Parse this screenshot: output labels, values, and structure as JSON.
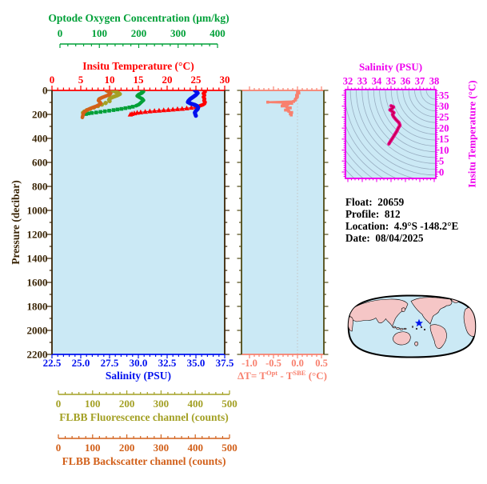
{
  "float_info": {
    "lines": [
      "Float:  20659",
      "Profile:  812",
      "Location:  4.9°S -148.2°E",
      "Date:  08/04/2025"
    ]
  },
  "colors": {
    "oxygen_green": "#00a038",
    "temperature_red": "#ff0000",
    "salinity_blue": "#0010ee",
    "pressure_brown": "#3a2506",
    "fluorescence_olive": "#a3a024",
    "backscatter_orange": "#d2601a",
    "delta_salmon": "#f8806e",
    "delta_frame_olive": "#4f4a14",
    "ts_magenta": "#ee00ee",
    "ts_curve": "#e6008a",
    "plot_background": "#cbe9f5",
    "map_land": "#f5c6c6",
    "map_ocean": "#cbe9f5",
    "star_blue": "#0016ee",
    "contour_gray": "#8fa3b8"
  },
  "chart_data": [
    {
      "type": "line",
      "title": "Main pressure profile plot",
      "ylabel": "Pressure (decibar)",
      "ylim": [
        0,
        2200
      ],
      "yticks": [
        0,
        200,
        400,
        600,
        800,
        1000,
        1200,
        1400,
        1600,
        1800,
        2000,
        2200
      ],
      "y_minor_step": 100,
      "grid": false,
      "axes": [
        {
          "id": "oxygen",
          "label": "Optode Oxygen Concentration (μm/kg)",
          "color": "#00a038",
          "range": [
            0,
            400
          ],
          "ticks": [
            0,
            100,
            200,
            300,
            400
          ],
          "minor_step": 20,
          "position": "top-outer"
        },
        {
          "id": "temperature",
          "label": "Insitu Temperature (°C)",
          "color": "#ff0000",
          "range": [
            0,
            30
          ],
          "ticks": [
            0,
            5,
            10,
            15,
            20,
            25,
            30
          ],
          "minor_step": 1,
          "position": "top"
        },
        {
          "id": "salinity",
          "label": "Salinity (PSU)",
          "color": "#0010ee",
          "range": [
            22.5,
            37.5
          ],
          "ticks": [
            22.5,
            25,
            27.5,
            30,
            32.5,
            35,
            37.5
          ],
          "tick_labels": [
            "22.5",
            "25.0",
            "27.5",
            "30.0",
            "32.5",
            "35.0",
            "37.5"
          ],
          "minor_step": 0.5,
          "position": "bottom"
        },
        {
          "id": "fluorescence",
          "label": "FLBB Fluorescence channel (counts)",
          "color": "#a3a024",
          "range": [
            0,
            500
          ],
          "ticks": [
            0,
            100,
            200,
            300,
            400,
            500
          ],
          "minor_step": 20,
          "position": "bottom-outer-1"
        },
        {
          "id": "backscatter",
          "label": "FLBB Backscatter channel (counts)",
          "color": "#d2601a",
          "range": [
            0,
            500
          ],
          "ticks": [
            0,
            100,
            200,
            300,
            400,
            500
          ],
          "minor_step": 20,
          "position": "bottom-outer-2"
        }
      ],
      "series": [
        {
          "name": "temperature-profile",
          "axis": "temperature",
          "color": "#ff0000",
          "marker": "triangle",
          "msz": 5.6,
          "lw": 4.5,
          "lw_thin": 1.2,
          "thick_until": 10,
          "points": [
            [
              26.4,
              0
            ],
            [
              26.6,
              12
            ],
            [
              26.3,
              25
            ],
            [
              26.5,
              40
            ],
            [
              26.3,
              55
            ],
            [
              26.5,
              70
            ],
            [
              26.4,
              85
            ],
            [
              26.6,
              98
            ],
            [
              26.5,
              110
            ],
            [
              26.2,
              120
            ],
            [
              25.6,
              130
            ],
            [
              25.0,
              138
            ],
            [
              24.2,
              144
            ],
            [
              23.4,
              149
            ],
            [
              22.6,
              153
            ],
            [
              21.8,
              156
            ],
            [
              21.0,
              159
            ],
            [
              20.2,
              162
            ],
            [
              19.4,
              165
            ],
            [
              18.6,
              168
            ],
            [
              17.8,
              171
            ],
            [
              17.0,
              174
            ],
            [
              16.2,
              178
            ],
            [
              15.4,
              182
            ],
            [
              14.8,
              186
            ],
            [
              14.3,
              191
            ],
            [
              13.9,
              196
            ],
            [
              13.6,
              201
            ]
          ]
        },
        {
          "name": "salinity-profile",
          "axis": "salinity",
          "color": "#0010ee",
          "marker": "none",
          "msz": 0,
          "lw": 5,
          "lw_thin": 1.2,
          "thick_until": 99,
          "points": [
            [
              34.9,
              0
            ],
            [
              35.05,
              10
            ],
            [
              35.15,
              22
            ],
            [
              35.0,
              38
            ],
            [
              34.75,
              55
            ],
            [
              34.5,
              72
            ],
            [
              34.35,
              88
            ],
            [
              34.3,
              98
            ],
            [
              34.55,
              110
            ],
            [
              34.9,
              120
            ],
            [
              35.1,
              130
            ],
            [
              35.2,
              142
            ],
            [
              35.15,
              155
            ],
            [
              35.0,
              170
            ],
            [
              34.9,
              185
            ],
            [
              34.95,
              200
            ],
            [
              35.0,
              212
            ]
          ]
        },
        {
          "name": "oxygen-profile",
          "axis": "oxygen",
          "color": "#00a038",
          "marker": "square",
          "msz": 4.6,
          "lw": 4.5,
          "lw_thin": 1.2,
          "thick_until": 11,
          "points": [
            [
              207,
              0
            ],
            [
              212,
              10
            ],
            [
              208,
              22
            ],
            [
              200,
              34
            ],
            [
              196,
              46
            ],
            [
              202,
              58
            ],
            [
              209,
              70
            ],
            [
              212,
              82
            ],
            [
              208,
              94
            ],
            [
              204,
              106
            ],
            [
              200,
              118
            ],
            [
              193,
              128
            ],
            [
              185,
              136
            ],
            [
              176,
              142
            ],
            [
              166,
              148
            ],
            [
              156,
              154
            ],
            [
              146,
              159
            ],
            [
              136,
              164
            ],
            [
              125,
              169
            ],
            [
              114,
              174
            ],
            [
              103,
              179
            ],
            [
              92,
              184
            ],
            [
              81,
              188
            ],
            [
              72,
              192
            ],
            [
              66,
              197
            ]
          ]
        },
        {
          "name": "fluorescence-profile",
          "axis": "fluorescence",
          "color": "#a3a024",
          "marker": "dot",
          "msz": 5.4,
          "lw": 5,
          "lw_thin": 1.6,
          "thick_until": 8,
          "points": [
            [
              157,
              0
            ],
            [
              166,
              10
            ],
            [
              175,
              20
            ],
            [
              180,
              30
            ],
            [
              172,
              42
            ],
            [
              160,
              54
            ],
            [
              151,
              66
            ],
            [
              148,
              78
            ],
            [
              150,
              90
            ],
            [
              138,
              105
            ],
            [
              127,
              118
            ],
            [
              116,
              130
            ],
            [
              104,
              142
            ],
            [
              93,
              154
            ],
            [
              83,
              165
            ],
            [
              76,
              176
            ],
            [
              72,
              186
            ]
          ]
        },
        {
          "name": "backscatter-profile",
          "axis": "backscatter",
          "color": "#d2601a",
          "marker": "none",
          "msz": 0,
          "lw": 4.5,
          "lw_thin": 1.2,
          "thick_until": 99,
          "points": [
            [
              139,
              0
            ],
            [
              147,
              12
            ],
            [
              153,
              24
            ],
            [
              149,
              36
            ],
            [
              138,
              48
            ],
            [
              127,
              60
            ],
            [
              119,
              72
            ],
            [
              117,
              84
            ],
            [
              121,
              96
            ],
            [
              124,
              108
            ],
            [
              119,
              120
            ],
            [
              111,
              132
            ],
            [
              99,
              144
            ],
            [
              89,
              156
            ],
            [
              81,
              168
            ],
            [
              76,
              180
            ],
            [
              73,
              192
            ],
            [
              72,
              204
            ],
            [
              71,
              216
            ],
            [
              70,
              225
            ]
          ]
        }
      ]
    },
    {
      "type": "line",
      "title": "Optode minus SBE temperature difference panel",
      "xlabel_parts": [
        {
          "t": "ΔT= T"
        },
        {
          "t": "Opt",
          "sup": true
        },
        {
          "t": " - T"
        },
        {
          "t": "SBE",
          "sup": true
        },
        {
          "t": " (°C)"
        }
      ],
      "xlabel_color": "#f8806e",
      "xlim": [
        -1.0,
        0.5
      ],
      "xticks": [
        -1.0,
        -0.5,
        0.0,
        0.5
      ],
      "xtick_labels": [
        "-1.0",
        "-0.5",
        "0.0",
        "0.5"
      ],
      "x_minor_step": 0.1,
      "ylim": [
        0,
        2200
      ],
      "y_minor_step": 100,
      "gridline_x": 0.0,
      "series": [
        {
          "name": "delta-t",
          "color": "#f8806e",
          "marker": "square",
          "msz": 3.6,
          "lw": 2.5,
          "points": [
            [
              0.02,
              2
            ],
            [
              0.0,
              12
            ],
            [
              0.03,
              22
            ],
            [
              0.0,
              32
            ],
            [
              -0.02,
              42
            ],
            [
              0.0,
              52
            ],
            [
              -0.02,
              62
            ],
            [
              -0.04,
              72
            ],
            [
              -0.05,
              82
            ],
            [
              -0.08,
              92
            ],
            [
              -0.62,
              98
            ],
            [
              -0.25,
              103
            ],
            [
              -0.12,
              108
            ],
            [
              -0.2,
              115
            ],
            [
              -0.3,
              122
            ],
            [
              -0.32,
              130
            ],
            [
              -0.22,
              138
            ],
            [
              -0.15,
              146
            ],
            [
              -0.2,
              155
            ],
            [
              -0.25,
              164
            ],
            [
              -0.18,
              174
            ],
            [
              -0.12,
              184
            ],
            [
              -0.15,
              195
            ],
            [
              -0.13,
              205
            ]
          ]
        }
      ]
    },
    {
      "type": "line",
      "title": "Temperature-Salinity diagram with density isolines",
      "xlabel": "Salinity (PSU)",
      "ylabel": "Insitu Temperature (°C)",
      "xlim": [
        32,
        38
      ],
      "xticks": [
        32,
        33,
        34,
        35,
        36,
        37,
        38
      ],
      "x_minor_step": 0.25,
      "ylim": [
        0,
        35
      ],
      "yticks": [
        0,
        5,
        10,
        15,
        20,
        25,
        30,
        35
      ],
      "y_minor_step": 1,
      "contours": "density-isoline-family",
      "series": [
        {
          "name": "t-s-curve",
          "color": "#e6008a",
          "lw": 4.2,
          "points": [
            [
              35.0,
              30.2
            ],
            [
              35.18,
              29.6
            ],
            [
              35.05,
              28.8
            ],
            [
              34.92,
              28.3
            ],
            [
              35.05,
              27.8
            ],
            [
              35.2,
              27.0
            ],
            [
              35.1,
              26.2
            ],
            [
              35.18,
              25.2
            ],
            [
              35.35,
              23.8
            ],
            [
              35.55,
              22.5
            ],
            [
              35.62,
              21.3
            ],
            [
              35.5,
              20.0
            ],
            [
              35.4,
              18.6
            ],
            [
              35.25,
              17.0
            ],
            [
              35.1,
              15.4
            ],
            [
              34.95,
              13.9
            ],
            [
              34.85,
              12.8
            ]
          ]
        }
      ]
    }
  ]
}
